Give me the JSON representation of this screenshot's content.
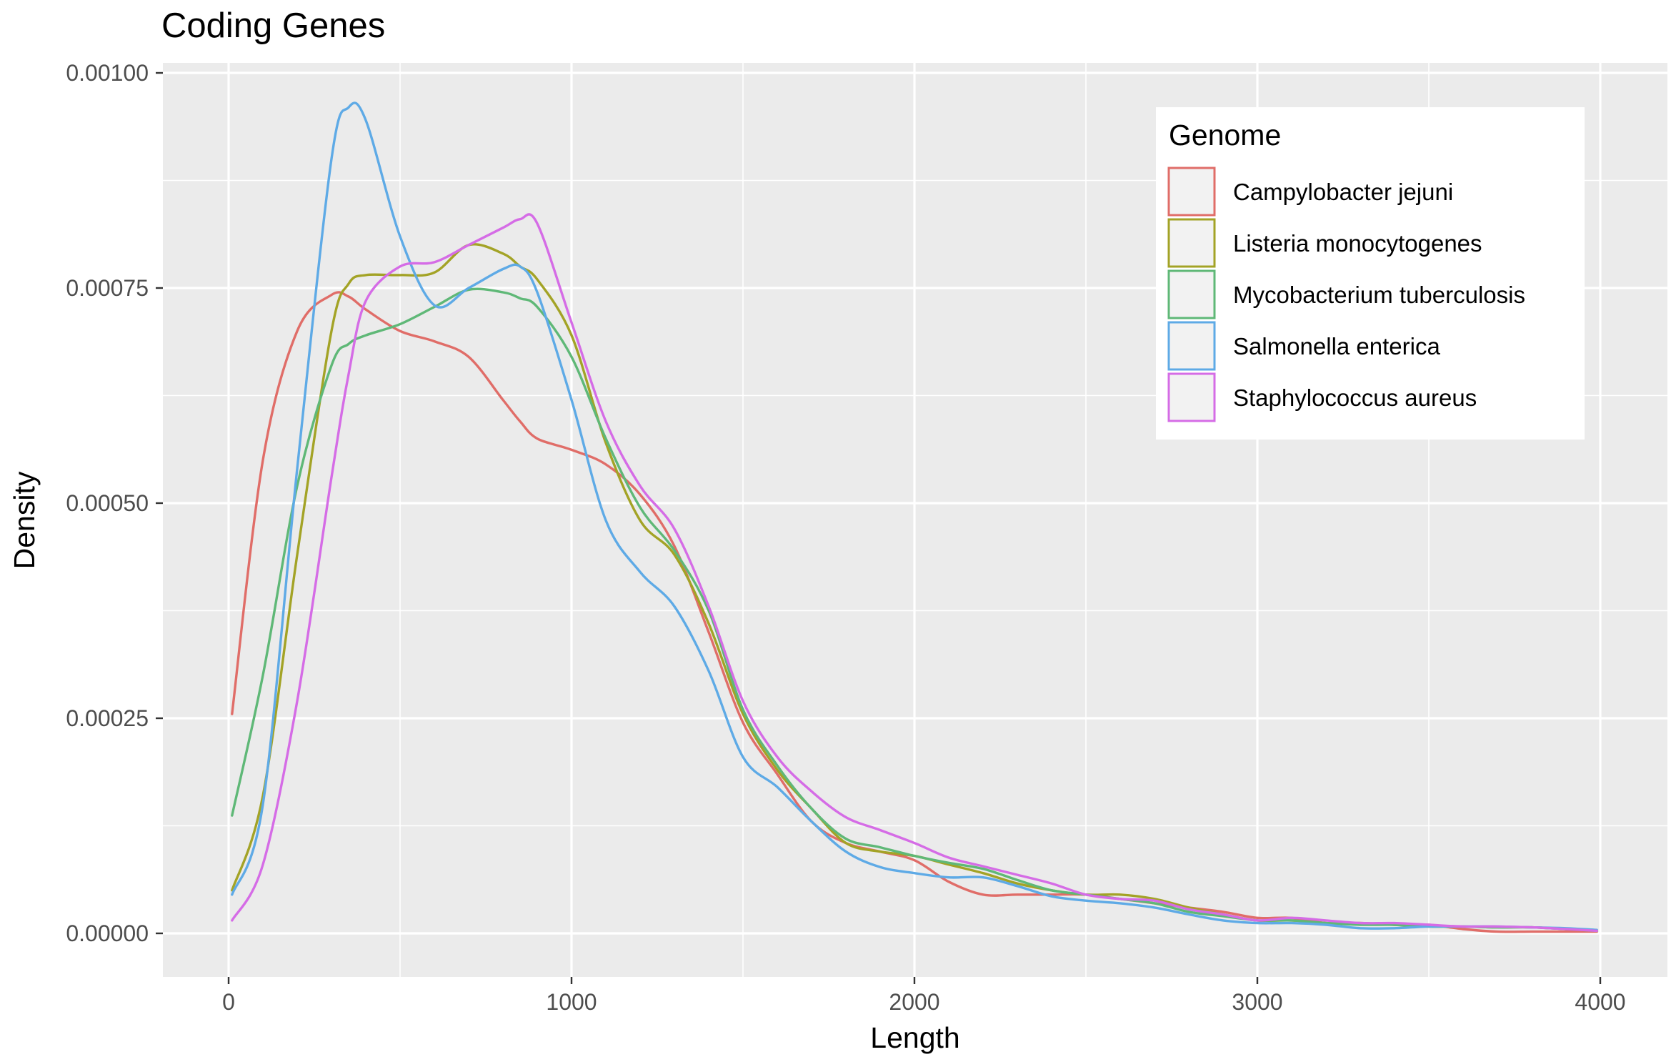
{
  "chart_data": {
    "type": "line",
    "title": "Coding Genes",
    "xlabel": "Length",
    "ylabel": "Density",
    "xlim": [
      -200,
      4200
    ],
    "ylim": [
      -5e-05,
      0.00101
    ],
    "x_ticks": [
      0,
      1000,
      2000,
      3000,
      4000
    ],
    "x_tick_labels": [
      "0",
      "1000",
      "2000",
      "3000",
      "4000"
    ],
    "y_ticks": [
      0,
      0.00025,
      0.0005,
      0.00075,
      0.001
    ],
    "y_tick_labels": [
      "0.00000",
      "0.00025",
      "0.00050",
      "0.00075",
      "0.00100"
    ],
    "grid": true,
    "legend": {
      "title": "Genome",
      "position": "top-right"
    },
    "x": [
      10,
      100,
      200,
      300,
      350,
      400,
      500,
      600,
      700,
      800,
      850,
      900,
      1000,
      1100,
      1200,
      1300,
      1400,
      1500,
      1600,
      1700,
      1800,
      1900,
      2000,
      2100,
      2200,
      2300,
      2400,
      2500,
      2600,
      2700,
      2800,
      2900,
      3000,
      3100,
      3200,
      3300,
      3400,
      3500,
      3600,
      3700,
      3800,
      3900,
      3990
    ],
    "series": [
      {
        "name": "Campylobacter jejuni",
        "color": "#e06d68",
        "values": [
          0.000255,
          0.00055,
          0.0007,
          0.000742,
          0.00074,
          0.000725,
          0.0007,
          0.000688,
          0.00067,
          0.00062,
          0.000595,
          0.000575,
          0.000562,
          0.000545,
          0.00051,
          0.00045,
          0.00035,
          0.000245,
          0.000185,
          0.00013,
          0.000105,
          9.5e-05,
          8.5e-05,
          6e-05,
          4.5e-05,
          4.5e-05,
          4.5e-05,
          4.5e-05,
          4e-05,
          3.5e-05,
          3e-05,
          2.5e-05,
          1.8e-05,
          1.8e-05,
          1.2e-05,
          1.2e-05,
          1e-05,
          1e-05,
          5e-06,
          2e-06,
          2e-06,
          2e-06,
          2e-06
        ]
      },
      {
        "name": "Listeria monocytogenes",
        "color": "#a3a326",
        "values": [
          5e-05,
          0.00016,
          0.00044,
          0.0007,
          0.000755,
          0.000765,
          0.000765,
          0.000768,
          0.0008,
          0.00079,
          0.000775,
          0.00076,
          0.000695,
          0.00057,
          0.00048,
          0.00044,
          0.00036,
          0.000255,
          0.00019,
          0.000145,
          0.000105,
          9.5e-05,
          9e-05,
          8e-05,
          7e-05,
          5.8e-05,
          5e-05,
          4.5e-05,
          4.5e-05,
          4e-05,
          3e-05,
          2.2e-05,
          1.5e-05,
          1.5e-05,
          1.2e-05,
          1.2e-05,
          1e-05,
          8e-06,
          8e-06,
          7e-06,
          7e-06,
          5e-06,
          3e-06
        ]
      },
      {
        "name": "Mycobacterium tuberculosis",
        "color": "#5fb877",
        "values": [
          0.000137,
          0.0003,
          0.00052,
          0.00066,
          0.000685,
          0.000695,
          0.000708,
          0.000728,
          0.000748,
          0.000745,
          0.000738,
          0.000728,
          0.00067,
          0.000575,
          0.000495,
          0.000445,
          0.000375,
          0.00026,
          0.000195,
          0.000145,
          0.00011,
          0.0001,
          9e-05,
          8.2e-05,
          7.5e-05,
          6.2e-05,
          5e-05,
          4.5e-05,
          4e-05,
          3.5e-05,
          2.5e-05,
          2e-05,
          1.5e-05,
          1.5e-05,
          1.2e-05,
          1e-05,
          1e-05,
          8e-06,
          8e-06,
          7e-06,
          7e-06,
          5e-06,
          3e-06
        ]
      },
      {
        "name": "Salmonella enterica",
        "color": "#5eaae6",
        "values": [
          4.5e-05,
          0.00015,
          0.00054,
          0.0009,
          0.00096,
          0.000945,
          0.00081,
          0.00073,
          0.00075,
          0.000772,
          0.000775,
          0.000745,
          0.00062,
          0.00048,
          0.00042,
          0.00038,
          0.000305,
          0.000205,
          0.00017,
          0.00013,
          9.5e-05,
          7.7e-05,
          7e-05,
          6.5e-05,
          6.5e-05,
          5.5e-05,
          4.3e-05,
          3.8e-05,
          3.5e-05,
          3e-05,
          2.2e-05,
          1.5e-05,
          1.2e-05,
          1.2e-05,
          1e-05,
          6e-06,
          6e-06,
          8e-06,
          8e-06,
          8e-06,
          7e-06,
          6e-06,
          4e-06
        ]
      },
      {
        "name": "Staphylococcus aureus",
        "color": "#d56ce6",
        "values": [
          1.5e-05,
          8e-05,
          0.00027,
          0.00053,
          0.00065,
          0.000735,
          0.000775,
          0.00078,
          0.0008,
          0.00082,
          0.00083,
          0.000825,
          0.00071,
          0.000595,
          0.00052,
          0.00047,
          0.00038,
          0.00027,
          0.000205,
          0.000165,
          0.000135,
          0.00012,
          0.000105,
          8.8e-05,
          7.8e-05,
          6.8e-05,
          5.8e-05,
          4.5e-05,
          4e-05,
          3.8e-05,
          2.8e-05,
          2.2e-05,
          1.5e-05,
          1.8e-05,
          1.5e-05,
          1.2e-05,
          1.2e-05,
          1e-05,
          8e-06,
          8e-06,
          7e-06,
          5e-06,
          3e-06
        ]
      }
    ]
  }
}
